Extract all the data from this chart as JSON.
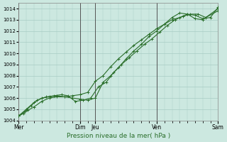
{
  "title": "",
  "xlabel": "Pression niveau de la mer( hPa )",
  "ylim": [
    1004,
    1014.5
  ],
  "yticks": [
    1004,
    1005,
    1006,
    1007,
    1008,
    1009,
    1010,
    1011,
    1012,
    1013,
    1014
  ],
  "background_color": "#cce8e0",
  "grid_color": "#a8ccc4",
  "line_color": "#2a6e2a",
  "vline_color": "#555555",
  "xtick_labels": [
    "Mer",
    "Dim",
    "Jeu",
    "Ven",
    "Sam"
  ],
  "xtick_positions": [
    0,
    4,
    5,
    9,
    13
  ],
  "vline_positions": [
    0,
    4,
    5,
    9,
    13
  ],
  "line1_x": [
    0,
    0.3,
    0.6,
    1.0,
    1.5,
    2.0,
    2.5,
    3.0,
    3.5,
    4.0,
    4.5,
    5.0,
    5.5,
    6.0,
    6.5,
    7.0,
    7.5,
    8.0,
    8.5,
    9.0,
    9.5,
    10.0,
    10.5,
    11.0,
    11.5,
    12.0,
    13.0
  ],
  "line1": [
    1004.4,
    1004.6,
    1004.9,
    1005.2,
    1005.7,
    1006.0,
    1006.1,
    1006.1,
    1006.0,
    1005.9,
    1005.8,
    1006.0,
    1007.4,
    1008.0,
    1008.7,
    1009.5,
    1010.2,
    1010.8,
    1011.5,
    1012.0,
    1012.6,
    1013.2,
    1013.6,
    1013.5,
    1013.1,
    1013.0,
    1014.0
  ],
  "line2_x": [
    0,
    0.4,
    0.8,
    1.2,
    1.8,
    2.3,
    2.8,
    3.2,
    3.7,
    4.2,
    4.7,
    5.2,
    5.7,
    6.2,
    6.7,
    7.2,
    7.7,
    8.2,
    8.7,
    9.2,
    9.7,
    10.2,
    10.7,
    11.2,
    11.7,
    12.2,
    13.0
  ],
  "line2": [
    1004.4,
    1004.8,
    1005.3,
    1005.8,
    1006.1,
    1006.2,
    1006.3,
    1006.2,
    1005.7,
    1005.8,
    1006.0,
    1007.0,
    1007.4,
    1008.3,
    1009.0,
    1009.6,
    1010.2,
    1010.8,
    1011.3,
    1011.9,
    1012.5,
    1013.0,
    1013.3,
    1013.5,
    1013.5,
    1013.2,
    1013.8
  ],
  "line3_x": [
    0,
    0.5,
    1.0,
    1.5,
    2.0,
    2.5,
    3.0,
    3.5,
    4.0,
    4.5,
    5.0,
    5.5,
    6.0,
    6.5,
    7.0,
    7.5,
    8.0,
    8.5,
    9.0,
    9.5,
    10.0,
    10.5,
    11.0,
    11.5,
    12.0,
    12.5,
    13.0
  ],
  "line3": [
    1004.4,
    1005.0,
    1005.6,
    1006.0,
    1006.1,
    1006.2,
    1006.1,
    1006.2,
    1006.3,
    1006.5,
    1007.5,
    1008.0,
    1008.8,
    1009.5,
    1010.1,
    1010.7,
    1011.2,
    1011.7,
    1012.2,
    1012.6,
    1013.0,
    1013.2,
    1013.5,
    1013.4,
    1013.1,
    1013.2,
    1014.1
  ],
  "marker_size": 3.0,
  "linewidth": 0.8,
  "figsize": [
    3.2,
    2.0
  ],
  "dpi": 100
}
